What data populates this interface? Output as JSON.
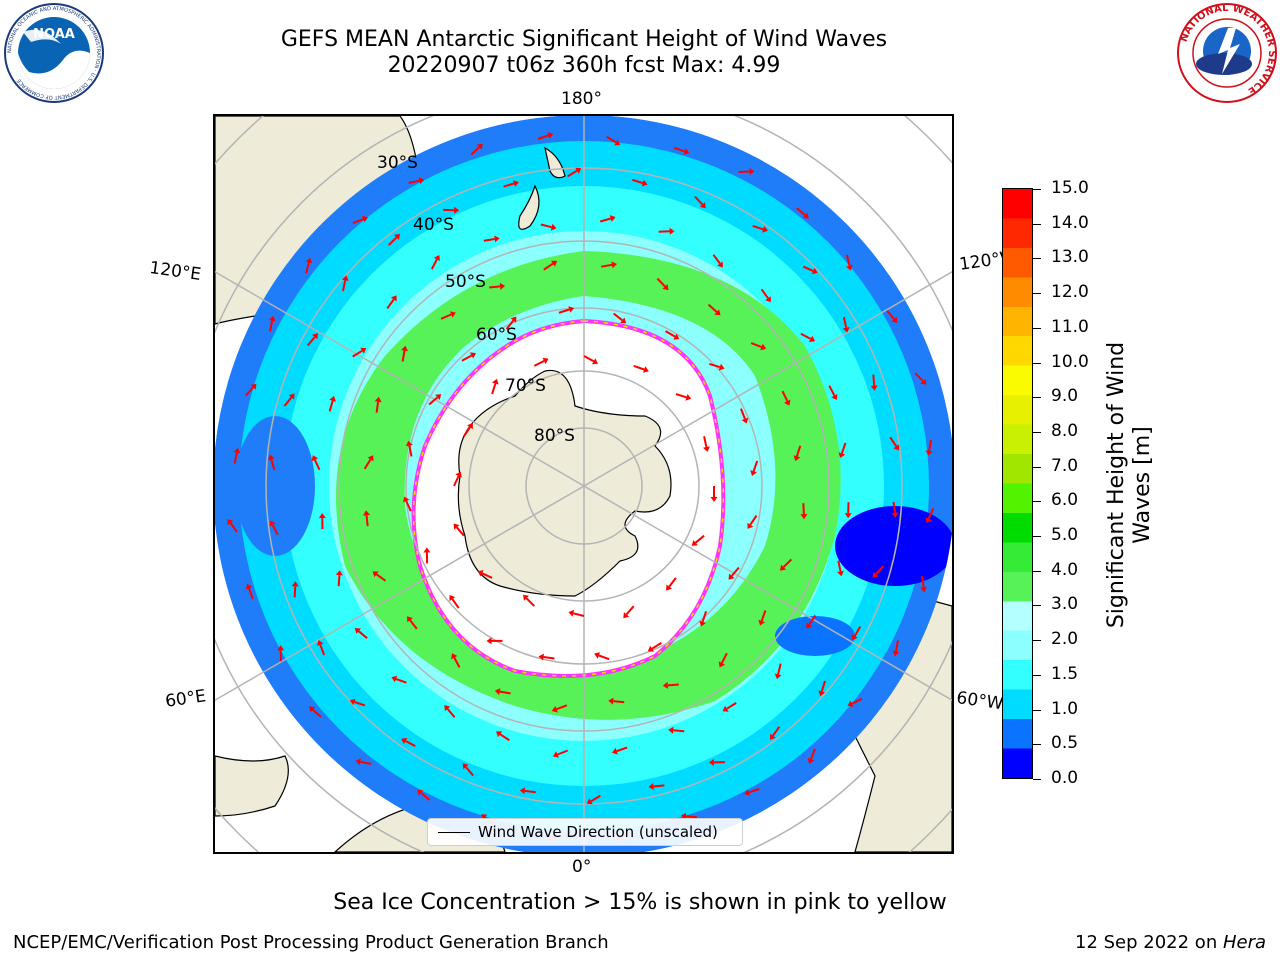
{
  "title": {
    "line1": "GEFS MEAN Antarctic Significant Height of Wind Waves",
    "line2": "20220907 t06z 360h fcst   Max: 4.99"
  },
  "logos": {
    "left": {
      "name": "noaa-logo",
      "text": "NOAA",
      "ring_text": "NATIONAL OCEANIC AND ATMOSPHERIC ADMINISTRATION · U.S. DEPARTMENT OF COMMERCE"
    },
    "right": {
      "name": "nws-logo",
      "ring_text": "NATIONAL WEATHER SERVICE"
    }
  },
  "map": {
    "projection": "south-polar-stereographic",
    "longitude_labels": {
      "top": "180°",
      "bottom": "0°",
      "upper_left": "120°E",
      "upper_right": "120°W",
      "lower_left": "60°E",
      "lower_right": "60°W"
    },
    "latitude_labels": [
      "30°S",
      "40°S",
      "50°S",
      "60°S",
      "70°S",
      "80°S"
    ],
    "legend": "Wind Wave Direction (unscaled)",
    "colors": {
      "land": "#eeebd9",
      "ocean_low": "#1f7dfa",
      "ocean_mid": "#33ffff",
      "ocean_green": "#4cf26a",
      "ice_edge": "#ff33ff",
      "arrow": "#ff0000",
      "grid": "#b4b4b4"
    }
  },
  "colorbar": {
    "title_line1": "Significant Height of Wind",
    "title_line2": "Waves [m]",
    "ticks": [
      "15.0",
      "14.0",
      "13.0",
      "12.0",
      "11.0",
      "10.0",
      "9.0",
      "8.0",
      "7.0",
      "6.0",
      "5.0",
      "4.0",
      "3.0",
      "2.0",
      "1.5",
      "1.0",
      "0.5",
      "0.0"
    ],
    "colors_bottom_to_top": [
      "#0000ff",
      "#0a73ff",
      "#00dcff",
      "#33ffff",
      "#8cffff",
      "#b4ffff",
      "#57f257",
      "#35eb35",
      "#00dc00",
      "#52f200",
      "#a0e600",
      "#c8f000",
      "#e6f000",
      "#fafa00",
      "#ffd800",
      "#ffb400",
      "#ff8c00",
      "#ff5a00",
      "#ff2800",
      "#ff0000"
    ]
  },
  "caption": "Sea Ice Concentration > 15% is shown in pink to yellow",
  "credits": {
    "left": "NCEP/EMC/Verification Post Processing Product Generation Branch",
    "right_date": "12 Sep 2022 on ",
    "right_host": "Hera"
  }
}
